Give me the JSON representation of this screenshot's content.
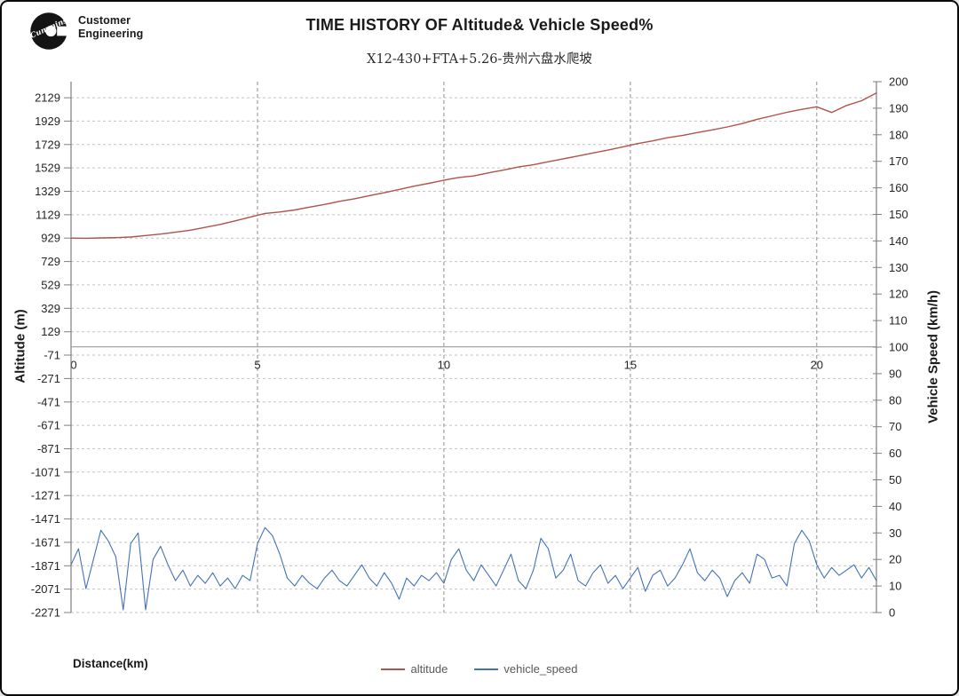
{
  "header": {
    "logo_brand": "Cummins",
    "logo_line1": "Customer",
    "logo_line2": "Engineering",
    "title": "TIME HISTORY OF Altitude& Vehicle Speed%",
    "subtitle": "X12-430+FTA+5.26-贵州六盘水爬坡"
  },
  "chart_data": {
    "type": "line",
    "title": "TIME HISTORY OF Altitude& Vehicle Speed%",
    "subtitle": "X12-430+FTA+5.26-贵州六盘水爬坡",
    "grid": true,
    "x_axis": {
      "label": "Distance(km)",
      "ticks": [
        0,
        5,
        10,
        15,
        20
      ],
      "range": [
        0,
        21.6
      ]
    },
    "y_left_axis": {
      "label": "Altitude (m)",
      "ticks": [
        2129,
        1929,
        1729,
        1529,
        1329,
        1129,
        929,
        729,
        529,
        329,
        129,
        -71,
        -271,
        -471,
        -671,
        -871,
        -1071,
        -1271,
        -1471,
        -1671,
        -1871,
        -2071,
        -2271
      ],
      "range": [
        -2271,
        2266
      ],
      "major_unit": 200
    },
    "y_right_axis": {
      "label": "Vehicle Speed (km/h)",
      "ticks": [
        200,
        190,
        180,
        170,
        160,
        150,
        140,
        130,
        120,
        110,
        100,
        90,
        80,
        70,
        60,
        50,
        40,
        30,
        20,
        10,
        0
      ],
      "range": [
        0,
        200
      ],
      "major_unit": 10
    },
    "legend": {
      "position": "bottom",
      "items": [
        {
          "label": "altitude",
          "color": "#b2524c"
        },
        {
          "label": "vehicle_speed",
          "color": "#4472b8"
        }
      ]
    },
    "series": [
      {
        "name": "altitude",
        "axis": "left",
        "color": "#b2524c",
        "x_start": 0,
        "x_step": 0.4,
        "values": [
          929,
          928,
          931,
          933,
          938,
          951,
          963,
          979,
          997,
          1021,
          1046,
          1076,
          1108,
          1140,
          1152,
          1170,
          1194,
          1217,
          1243,
          1265,
          1292,
          1317,
          1345,
          1373,
          1397,
          1424,
          1447,
          1460,
          1487,
          1510,
          1537,
          1556,
          1582,
          1607,
          1631,
          1657,
          1681,
          1709,
          1737,
          1760,
          1787,
          1806,
          1831,
          1854,
          1879,
          1908,
          1944,
          1974,
          2004,
          2029,
          2051,
          2003,
          2063,
          2103,
          2170
        ]
      },
      {
        "name": "vehicle_speed",
        "axis": "right",
        "color": "#4472b8",
        "x_start": 0,
        "x_step": 0.2,
        "values": [
          18,
          24,
          9,
          20,
          31,
          27,
          21,
          1,
          26,
          30,
          1,
          20,
          25,
          18,
          12,
          16,
          10,
          14,
          11,
          15,
          10,
          13,
          9,
          14,
          12,
          26,
          32,
          29,
          22,
          13,
          10,
          14,
          11,
          9,
          13,
          16,
          12,
          10,
          14,
          18,
          13,
          10,
          15,
          11,
          5,
          13,
          10,
          14,
          12,
          15,
          11,
          20,
          24,
          16,
          12,
          18,
          14,
          10,
          16,
          22,
          12,
          9,
          16,
          28,
          24,
          13,
          16,
          22,
          12,
          10,
          15,
          18,
          11,
          14,
          9,
          13,
          17,
          8,
          14,
          16,
          10,
          13,
          18,
          24,
          15,
          12,
          16,
          13,
          6,
          12,
          15,
          11,
          22,
          20,
          13,
          14,
          10,
          26,
          31,
          27,
          18,
          13,
          17,
          14,
          16,
          18,
          13,
          17,
          12
        ]
      }
    ]
  }
}
